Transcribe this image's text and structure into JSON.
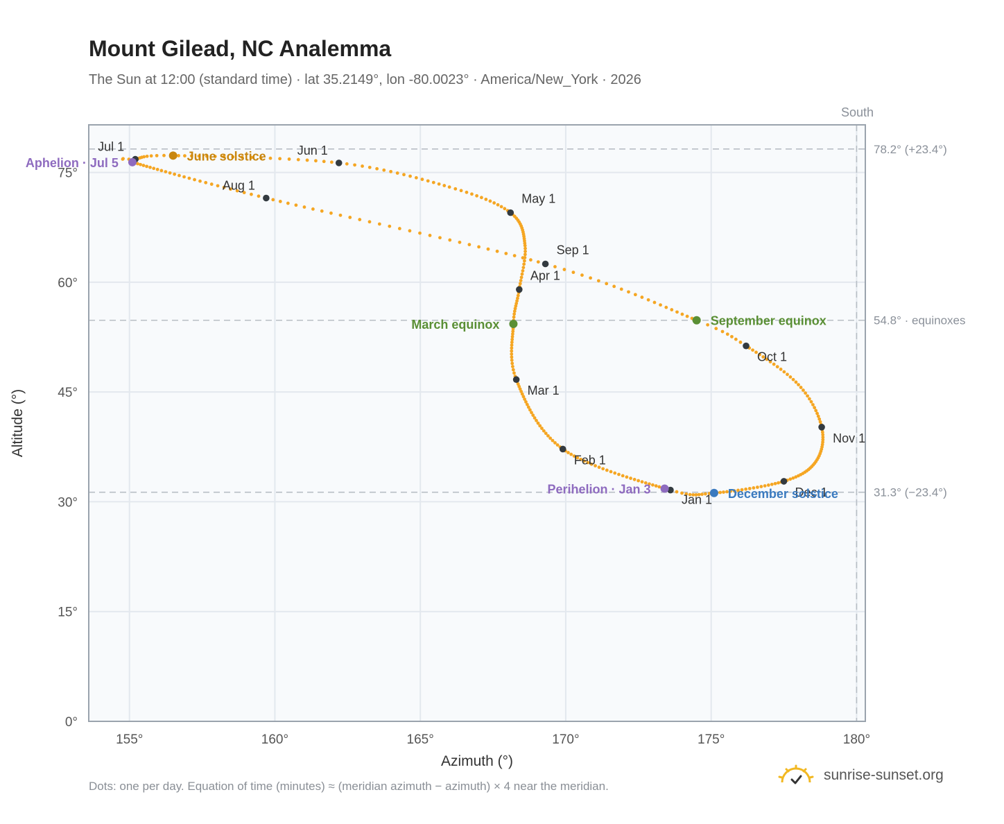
{
  "header": {
    "title": "Mount Gilead, NC Analemma",
    "subtitle": "The Sun at 12:00 (standard time) · lat 35.2149°, lon -80.0023° · America/New_York · 2026"
  },
  "footer": {
    "note": "Dots: one per day. Equation of time (minutes) ≈ (meridian azimuth − azimuth) × 4 near the meridian.",
    "brand": "sunrise-sunset.org"
  },
  "colors": {
    "curve": "#f5a623",
    "month_dot": "#333a40",
    "june_solstice": "#c8860f",
    "december_solstice": "#3a7abf",
    "equinox": "#5a8f35",
    "apsis": "#8e6bbf",
    "grid": "#e3e8ee",
    "plot_bg": "#f8fafc",
    "frame": "#9aa3ad",
    "refline": "#b8bec5"
  },
  "chart_data": {
    "type": "scatter",
    "xlabel": "Azimuth (°)",
    "ylabel": "Altitude (°)",
    "xlim": [
      153.6,
      180.3
    ],
    "ylim": [
      0,
      81.5
    ],
    "xticks": [
      155,
      160,
      165,
      170,
      175,
      180
    ],
    "yticks": [
      0,
      15,
      30,
      45,
      60,
      75
    ],
    "xtick_labels": [
      "155°",
      "160°",
      "165°",
      "170°",
      "175°",
      "180°"
    ],
    "ytick_labels": [
      "0°",
      "15°",
      "30°",
      "45°",
      "60°",
      "75°"
    ],
    "grid": true,
    "meridian": {
      "azimuth": 180,
      "label": "South"
    },
    "reference_lines": [
      {
        "altitude": 78.2,
        "label": "78.2° (+23.4°)"
      },
      {
        "altitude": 54.8,
        "label": "54.8° · equinoxes"
      },
      {
        "altitude": 31.3,
        "label": "31.3° (−23.4°)"
      }
    ],
    "series": [
      {
        "kind": "daily-path",
        "key_dates": [
          {
            "day": 1,
            "az": 173.6,
            "alt": 31.6
          },
          {
            "day": 32,
            "az": 169.9,
            "alt": 37.2
          },
          {
            "day": 60,
            "az": 168.3,
            "alt": 46.7
          },
          {
            "day": 79,
            "az": 168.2,
            "alt": 54.3
          },
          {
            "day": 91,
            "az": 168.4,
            "alt": 59.0
          },
          {
            "day": 105,
            "az": 168.6,
            "alt": 65.0
          },
          {
            "day": 121,
            "az": 168.1,
            "alt": 69.5
          },
          {
            "day": 135,
            "az": 166.0,
            "alt": 73.0
          },
          {
            "day": 152,
            "az": 162.2,
            "alt": 76.3
          },
          {
            "day": 172,
            "az": 156.5,
            "alt": 77.3
          },
          {
            "day": 182,
            "az": 155.2,
            "alt": 76.8
          },
          {
            "day": 186,
            "az": 155.1,
            "alt": 76.4
          },
          {
            "day": 213,
            "az": 159.7,
            "alt": 71.5
          },
          {
            "day": 244,
            "az": 169.3,
            "alt": 62.5
          },
          {
            "day": 266,
            "az": 174.5,
            "alt": 54.8
          },
          {
            "day": 274,
            "az": 176.2,
            "alt": 51.3
          },
          {
            "day": 290,
            "az": 178.0,
            "alt": 46.0
          },
          {
            "day": 305,
            "az": 178.8,
            "alt": 40.2
          },
          {
            "day": 320,
            "az": 178.6,
            "alt": 35.5
          },
          {
            "day": 335,
            "az": 177.5,
            "alt": 32.8
          },
          {
            "day": 355,
            "az": 175.1,
            "alt": 31.2
          },
          {
            "day": 366,
            "az": 173.6,
            "alt": 31.6
          }
        ]
      }
    ],
    "month_markers": [
      {
        "label": "Jan 1",
        "az": 173.6,
        "alt": 31.6,
        "anchor": "below"
      },
      {
        "label": "Feb 1",
        "az": 169.9,
        "alt": 37.2,
        "anchor": "below-right"
      },
      {
        "label": "Mar 1",
        "az": 168.3,
        "alt": 46.7,
        "anchor": "below-right"
      },
      {
        "label": "Apr 1",
        "az": 168.4,
        "alt": 59.0,
        "anchor": "above-right"
      },
      {
        "label": "May 1",
        "az": 168.1,
        "alt": 69.5,
        "anchor": "above-right"
      },
      {
        "label": "Jun 1",
        "az": 162.2,
        "alt": 76.3,
        "anchor": "above-left"
      },
      {
        "label": "Jul 1",
        "az": 155.2,
        "alt": 76.8,
        "anchor": "above-left"
      },
      {
        "label": "Aug 1",
        "az": 159.7,
        "alt": 71.5,
        "anchor": "above-left"
      },
      {
        "label": "Sep 1",
        "az": 169.3,
        "alt": 62.5,
        "anchor": "above-right"
      },
      {
        "label": "Oct 1",
        "az": 176.2,
        "alt": 51.3,
        "anchor": "below-right"
      },
      {
        "label": "Nov 1",
        "az": 178.8,
        "alt": 40.2,
        "anchor": "below-right"
      },
      {
        "label": "Dec 1",
        "az": 177.5,
        "alt": 32.8,
        "anchor": "below-right"
      }
    ],
    "events": [
      {
        "label": "June solstice",
        "az": 156.5,
        "alt": 77.3,
        "color_key": "june_solstice",
        "anchor": "right"
      },
      {
        "label": "December solstice",
        "az": 175.1,
        "alt": 31.2,
        "color_key": "december_solstice",
        "anchor": "right"
      },
      {
        "label": "March equinox",
        "az": 168.2,
        "alt": 54.3,
        "color_key": "equinox",
        "anchor": "left"
      },
      {
        "label": "September equinox",
        "az": 174.5,
        "alt": 54.8,
        "color_key": "equinox",
        "anchor": "right"
      },
      {
        "label": "Aphelion · Jul 5",
        "az": 155.1,
        "alt": 76.4,
        "color_key": "apsis",
        "anchor": "left"
      },
      {
        "label": "Perihelion · Jan 3",
        "az": 173.4,
        "alt": 31.8,
        "color_key": "apsis",
        "anchor": "left"
      }
    ]
  }
}
